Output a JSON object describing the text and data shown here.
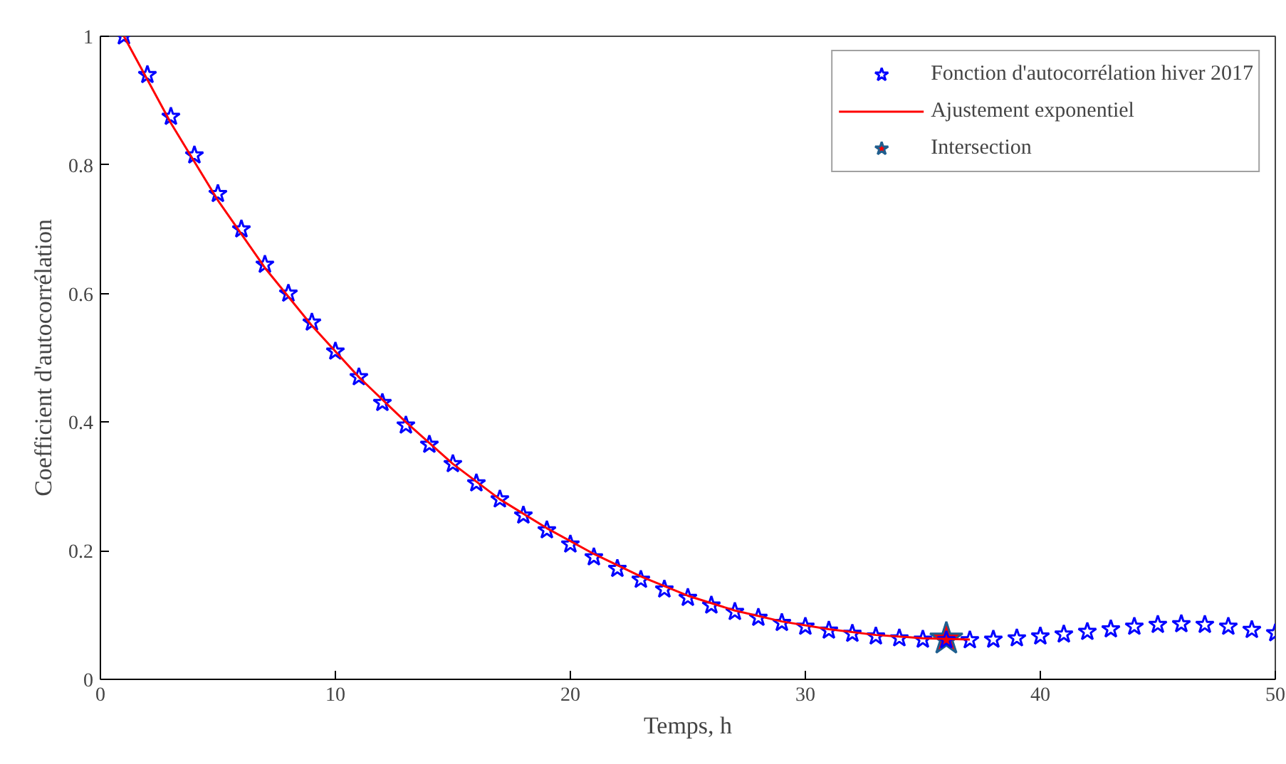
{
  "chart_data": {
    "type": "scatter",
    "xlabel": "Temps, h",
    "ylabel": "Coefficient d'autocorrélation",
    "xlim": [
      0,
      50
    ],
    "ylim": [
      0,
      1
    ],
    "xticks": [
      0,
      10,
      20,
      30,
      40,
      50
    ],
    "yticks": [
      0,
      0.2,
      0.4,
      0.6,
      0.8,
      1
    ],
    "grid": false,
    "legend": "top right",
    "series": [
      {
        "name": "Fonction d'autocorrélation hiver 2017",
        "marker": "star",
        "color": "#0000ff",
        "x": [
          1,
          2,
          3,
          4,
          5,
          6,
          7,
          8,
          9,
          10,
          11,
          12,
          13,
          14,
          15,
          16,
          17,
          18,
          19,
          20,
          21,
          22,
          23,
          24,
          25,
          26,
          27,
          28,
          29,
          30,
          31,
          32,
          33,
          34,
          35,
          36,
          37,
          38,
          39,
          40,
          41,
          42,
          43,
          44,
          45,
          46,
          47,
          48,
          49,
          50
        ],
        "values": [
          1.0,
          0.94,
          0.875,
          0.815,
          0.755,
          0.7,
          0.645,
          0.6,
          0.555,
          0.51,
          0.47,
          0.43,
          0.395,
          0.365,
          0.335,
          0.305,
          0.28,
          0.255,
          0.232,
          0.21,
          0.19,
          0.172,
          0.155,
          0.14,
          0.127,
          0.115,
          0.105,
          0.096,
          0.088,
          0.082,
          0.076,
          0.071,
          0.067,
          0.064,
          0.062,
          0.061,
          0.061,
          0.062,
          0.064,
          0.067,
          0.07,
          0.074,
          0.078,
          0.082,
          0.085,
          0.086,
          0.085,
          0.082,
          0.077,
          0.072
        ]
      },
      {
        "name": "Ajustement exponentiel",
        "type": "line",
        "marker": "none",
        "line_style": "solid",
        "color": "#ff0000",
        "x": [
          1,
          3,
          5,
          7,
          9,
          11,
          13,
          15,
          17,
          19,
          21,
          23,
          25,
          27,
          29,
          31,
          33,
          35,
          37
        ],
        "values": [
          1.0,
          0.865,
          0.745,
          0.64,
          0.55,
          0.47,
          0.4,
          0.335,
          0.28,
          0.235,
          0.195,
          0.16,
          0.13,
          0.107,
          0.09,
          0.078,
          0.069,
          0.064,
          0.062
        ]
      },
      {
        "name": "Intersection",
        "marker": "star",
        "color": "#ff0000",
        "x": [
          36
        ],
        "values": [
          0.063
        ]
      }
    ]
  }
}
